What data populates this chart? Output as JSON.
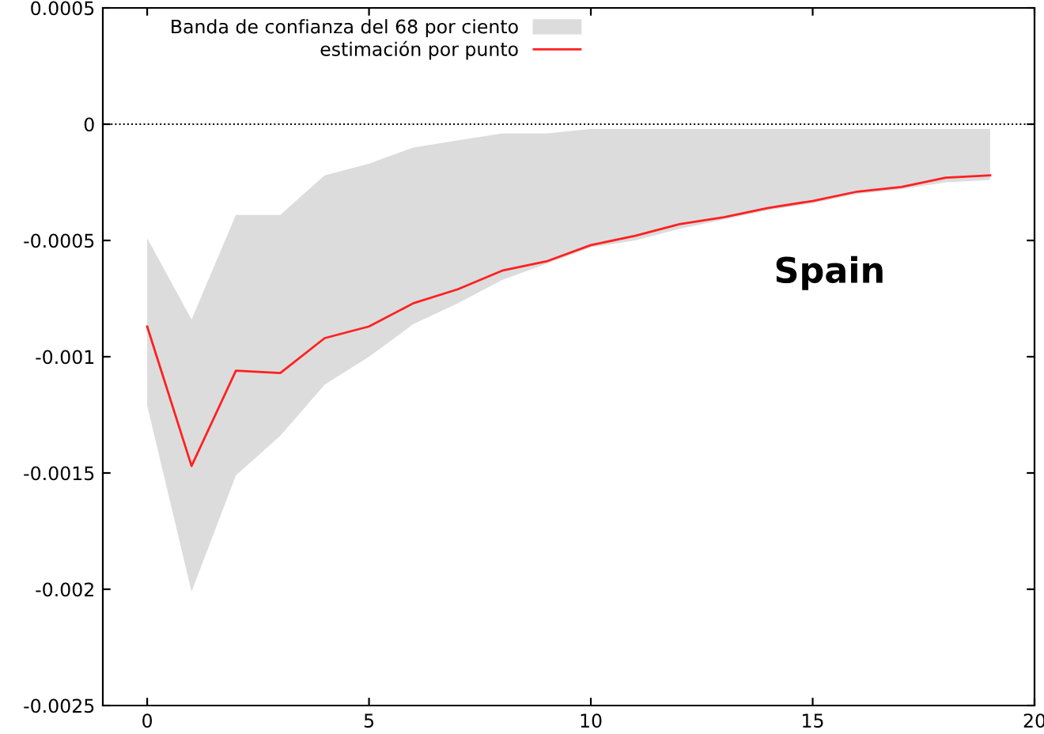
{
  "chart_data": {
    "type": "line",
    "x": [
      0,
      1,
      2,
      3,
      4,
      5,
      6,
      7,
      8,
      9,
      10,
      11,
      12,
      13,
      14,
      15,
      16,
      17,
      18,
      19
    ],
    "series": [
      {
        "type": "area",
        "name": "Banda de confianza del 68 por ciento",
        "color": "#dcdcdc",
        "lower": [
          -0.00121,
          -0.00201,
          -0.00151,
          -0.00134,
          -0.00112,
          -0.001,
          -0.00086,
          -0.00077,
          -0.00067,
          -0.0006,
          -0.00053,
          -0.0005,
          -0.00045,
          -0.00041,
          -0.00037,
          -0.00034,
          -0.0003,
          -0.00028,
          -0.00025,
          -0.00024
        ],
        "values": [
          null,
          null,
          null,
          null,
          null,
          null,
          null,
          null,
          null,
          null,
          null,
          null,
          null,
          null,
          null,
          null,
          null,
          null,
          null,
          null
        ],
        "upper": [
          -0.00049,
          -0.00084,
          -0.00039,
          -0.00039,
          -0.00022,
          -0.00017,
          -0.0001,
          -7e-05,
          -4e-05,
          -4e-05,
          -2e-05,
          -2e-05,
          -2e-05,
          -2e-05,
          -2e-05,
          -2e-05,
          -2e-05,
          -2e-05,
          -2e-05,
          -2e-05
        ]
      },
      {
        "name": "estimación por punto",
        "color": "#ff2020",
        "values": [
          -0.00087,
          -0.00147,
          -0.00106,
          -0.00107,
          -0.00092,
          -0.00087,
          -0.00077,
          -0.00071,
          -0.00063,
          -0.00059,
          -0.00052,
          -0.00048,
          -0.00043,
          -0.0004,
          -0.00036,
          -0.00033,
          -0.00029,
          -0.00027,
          -0.00023,
          -0.00022
        ]
      }
    ],
    "xlim": [
      -1,
      20
    ],
    "xticks": [
      0,
      5,
      10,
      15,
      20
    ],
    "ylim": [
      -0.0025,
      0.0005
    ],
    "yticks": [
      0.0005,
      0,
      -0.0005,
      -0.001,
      -0.0015,
      -0.002,
      -0.0025
    ],
    "ref_lines": [
      {
        "axis": "y",
        "value": 0,
        "color": "#000000",
        "line_style": "dotted"
      }
    ],
    "annotations": [
      "Spain"
    ],
    "legend": "top left",
    "grid": false,
    "marker": "none",
    "line_style": "solid"
  }
}
